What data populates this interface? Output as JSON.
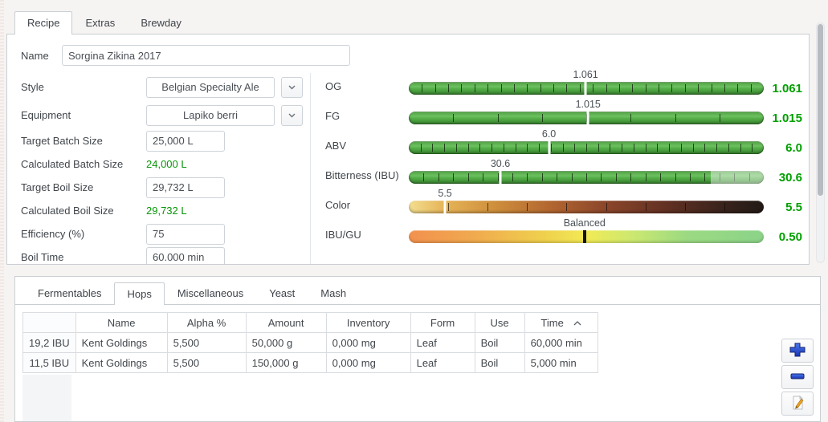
{
  "top_tabs": {
    "items": [
      {
        "label": "Recipe",
        "active": true
      },
      {
        "label": "Extras",
        "active": false
      },
      {
        "label": "Brewday",
        "active": false
      }
    ]
  },
  "recipe_form": {
    "name": {
      "label": "Name",
      "value": "Sorgina Zikina 2017"
    },
    "style": {
      "label": "Style",
      "value": "Belgian Specialty Ale"
    },
    "equipment": {
      "label": "Equipment",
      "value": "Lapiko berri"
    },
    "fields": [
      {
        "id": "target-batch-size",
        "label": "Target Batch Size",
        "value": "25,000 L",
        "kind": "input"
      },
      {
        "id": "calculated-batch-size",
        "label": "Calculated Batch Size",
        "value": "24,000 L",
        "kind": "calculated"
      },
      {
        "id": "target-boil-size",
        "label": "Target Boil Size",
        "value": "29,732 L",
        "kind": "input"
      },
      {
        "id": "calculated-boil-size",
        "label": "Calculated Boil Size",
        "value": "29,732 L",
        "kind": "calculated"
      },
      {
        "id": "efficiency",
        "label": "Efficiency (%)",
        "value": "75",
        "kind": "input"
      },
      {
        "id": "boil-time",
        "label": "Boil Time",
        "value": "60.000 min",
        "kind": "input"
      }
    ]
  },
  "gauges": [
    {
      "id": "og",
      "label": "OG",
      "value": "1.061",
      "marker_label": "1.061",
      "marker_pos": 49.8,
      "bar": "green",
      "ticks": 26,
      "marker": "light"
    },
    {
      "id": "fg",
      "label": "FG",
      "value": "1.015",
      "marker_label": "1.015",
      "marker_pos": 50.5,
      "bar": "green",
      "ticks": 7,
      "marker": "light"
    },
    {
      "id": "abv",
      "label": "ABV",
      "value": "6.0",
      "marker_label": "6.0",
      "marker_pos": 39.5,
      "bar": "green",
      "ticks": 29,
      "marker": "light"
    },
    {
      "id": "bitterness",
      "label": "Bitterness (IBU)",
      "value": "30.6",
      "marker_label": "30.6",
      "marker_pos": 25.8,
      "bar": "green",
      "ticks": 23,
      "marker": "light",
      "light_from": 85
    },
    {
      "id": "color",
      "label": "Color",
      "value": "5.5",
      "marker_label": "5.5",
      "marker_pos": 10.2,
      "bar": "srm",
      "ticks": 8,
      "marker": "light"
    },
    {
      "id": "ibu-gu",
      "label": "IBU/GU",
      "value": "0.50",
      "marker_label": "Balanced",
      "marker_pos": 49.5,
      "bar": "balance",
      "ticks": 0,
      "marker": "dark"
    }
  ],
  "ingredient_tabs": {
    "items": [
      {
        "label": "Fermentables",
        "active": false
      },
      {
        "label": "Hops",
        "active": true
      },
      {
        "label": "Miscellaneous",
        "active": false
      },
      {
        "label": "Yeast",
        "active": false
      },
      {
        "label": "Mash",
        "active": false
      }
    ]
  },
  "hops_table": {
    "columns": [
      {
        "label": "Name"
      },
      {
        "label": "Alpha %"
      },
      {
        "label": "Amount"
      },
      {
        "label": "Inventory"
      },
      {
        "label": "Form"
      },
      {
        "label": "Use"
      },
      {
        "label": "Time",
        "sorted": "asc"
      }
    ],
    "rows": [
      {
        "ibu": "19,2 IBU",
        "cells": [
          "Kent Goldings",
          "5,500",
          "50,000 g",
          "0,000 mg",
          "Leaf",
          "Boil",
          "60,000 min"
        ]
      },
      {
        "ibu": "11,5 IBU",
        "cells": [
          "Kent Goldings",
          "5,500",
          "150,000 g",
          "0,000 mg",
          "Leaf",
          "Boil",
          "5,000 min"
        ]
      }
    ]
  },
  "action_buttons": [
    {
      "id": "add-hop",
      "icon": "plus-icon"
    },
    {
      "id": "remove-hop",
      "icon": "minus-icon"
    },
    {
      "id": "edit-hop",
      "icon": "edit-pencil-icon"
    }
  ],
  "colors": {
    "value_green": "#00a000",
    "calculated_green": "#089608",
    "gauge_green": "#54ad48",
    "accent_blue": "#2247c9"
  }
}
